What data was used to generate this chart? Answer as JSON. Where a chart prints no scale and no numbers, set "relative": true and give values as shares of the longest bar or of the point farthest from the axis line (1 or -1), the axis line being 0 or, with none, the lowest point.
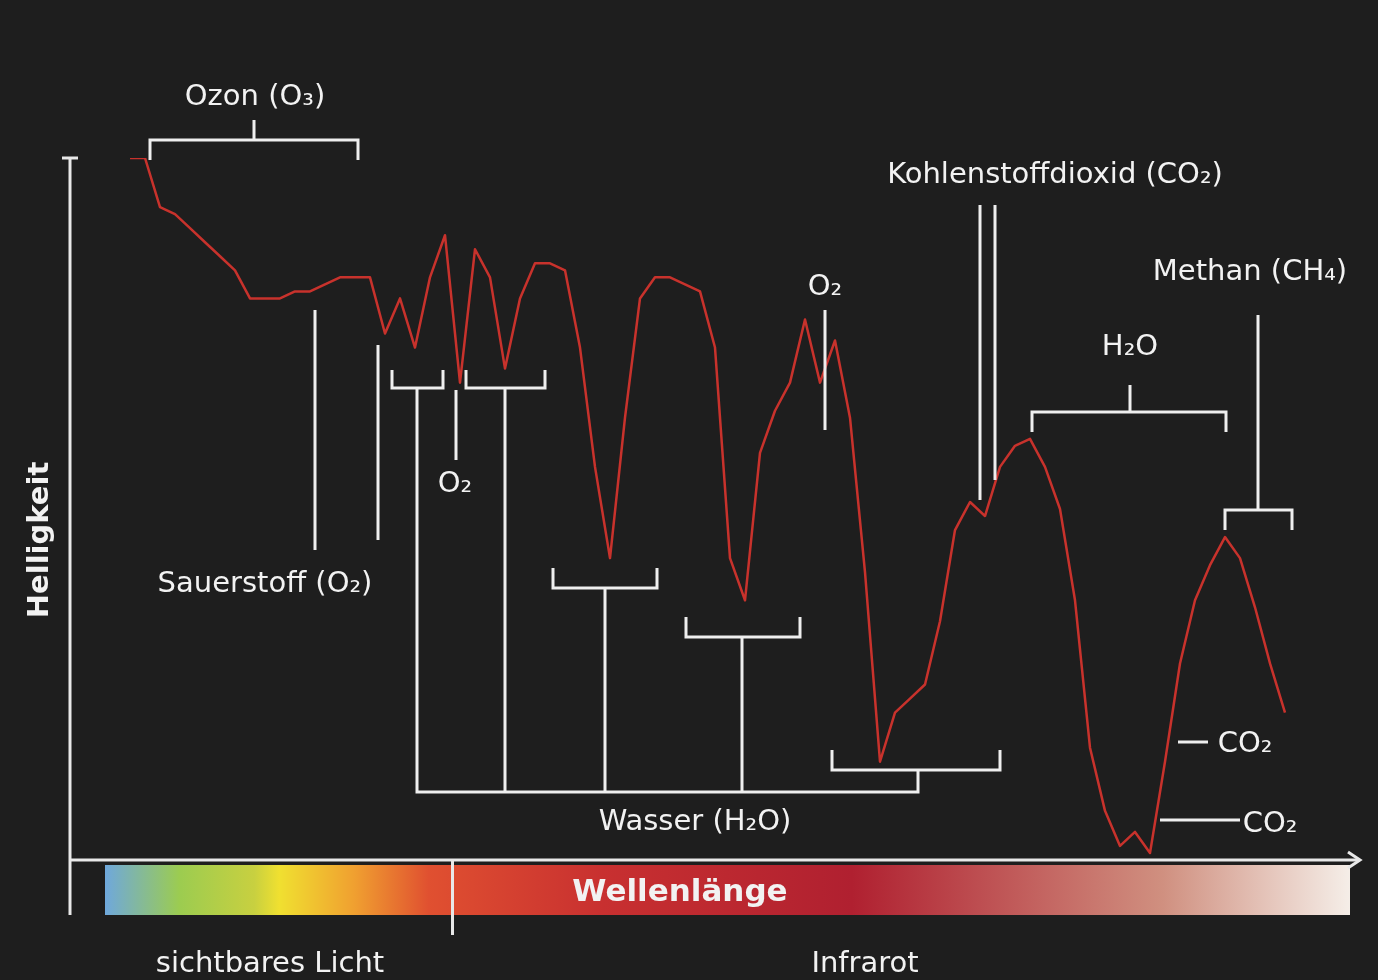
{
  "chart_data": {
    "type": "line",
    "relative": true,
    "xlabel": "Wellenlänge",
    "ylabel": "Helligkeit",
    "categories": [
      null,
      null,
      null,
      null,
      null,
      null,
      null,
      null,
      null,
      null,
      null,
      null,
      null,
      null,
      null,
      null,
      null,
      null,
      null,
      null,
      null,
      null,
      null,
      null,
      null,
      null,
      null,
      null,
      null,
      null,
      null,
      null,
      null,
      null,
      null,
      null,
      null,
      null,
      null,
      null,
      null,
      null,
      null,
      null,
      null,
      null,
      null,
      null,
      null,
      null,
      null,
      null,
      null,
      null,
      null,
      null,
      null,
      null,
      null,
      null,
      null,
      null,
      null,
      null,
      null,
      null,
      null,
      null,
      null,
      null,
      null,
      null,
      null,
      null,
      null,
      null,
      null,
      null,
      null,
      null,
      null,
      null,
      null,
      null,
      null,
      null,
      null
    ],
    "values": [
      null,
      null,
      null,
      null,
      1.0,
      1.0,
      0.93,
      0.92,
      0.9,
      0.88,
      0.86,
      0.84,
      0.8,
      0.8,
      0.8,
      0.81,
      0.81,
      0.82,
      0.83,
      0.83,
      0.83,
      0.75,
      0.8,
      0.73,
      0.83,
      0.89,
      0.68,
      0.87,
      0.83,
      0.7,
      0.8,
      0.85,
      0.85,
      0.84,
      0.73,
      0.56,
      0.43,
      0.63,
      0.8,
      0.83,
      0.83,
      0.82,
      0.81,
      0.73,
      0.43,
      0.37,
      0.58,
      0.64,
      0.68,
      0.77,
      0.68,
      0.74,
      0.63,
      0.41,
      0.14,
      0.21,
      0.23,
      0.25,
      0.34,
      0.47,
      0.51,
      0.49,
      0.56,
      0.59,
      0.6,
      0.56,
      0.5,
      0.37,
      0.16,
      0.07,
      0.02,
      0.04,
      0.01,
      0.14,
      0.28,
      0.37,
      0.42,
      0.46,
      0.43,
      0.36,
      0.28,
      0.21,
      null,
      null,
      null,
      null,
      null
    ],
    "color": "#c8322c",
    "annotations": [
      "Ozon (O₃)",
      "Sauerstoff (O₂)",
      "O₂",
      "Wasser (H₂O)",
      "O₂",
      "Kohlenstoffdioxid (CO₂)",
      "H₂O",
      "Methan (CH₄)",
      "CO₂",
      "CO₂",
      "sichtbares Licht",
      "Infrarot"
    ],
    "legend": false,
    "marker": "none",
    "line_style": "solid"
  }
}
